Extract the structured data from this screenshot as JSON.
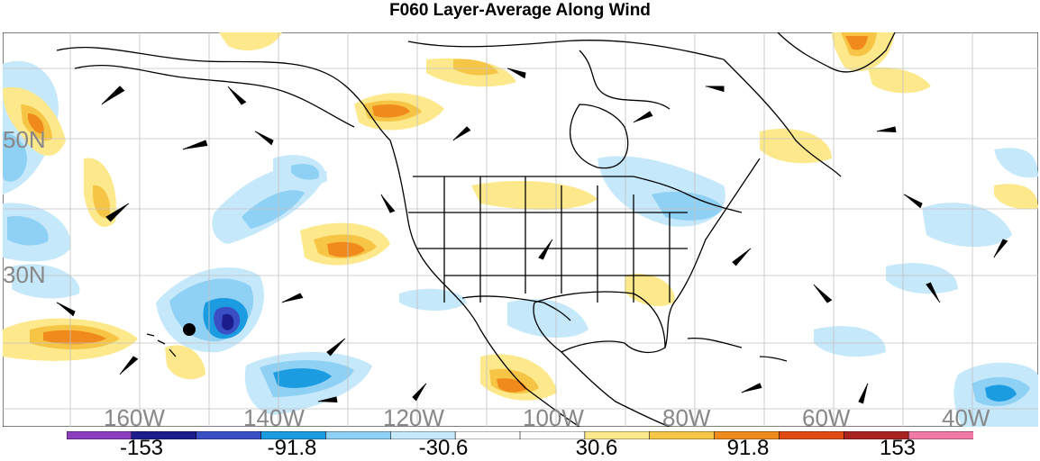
{
  "title": "F060 Layer-Average Along Wind",
  "latitude_labels": [
    "50N",
    "30N"
  ],
  "longitude_labels": [
    "160W",
    "140W",
    "120W",
    "100W",
    "80W",
    "60W",
    "40W"
  ],
  "colorbar": {
    "colors": [
      "#8b3fbf",
      "#1c1c8c",
      "#3a4fc4",
      "#1b9be0",
      "#8fd0f5",
      "#c6e8fb",
      "#ffffff",
      "#ffffff",
      "#fde98c",
      "#f7c545",
      "#f08a1c",
      "#e24a14",
      "#a82222",
      "#f07aa5"
    ],
    "labels": [
      "-153",
      "-91.8",
      "-30.6",
      "30.6",
      "91.8",
      "153"
    ]
  },
  "map": {
    "coast_color": "#000000",
    "grid_color": "#c0c0c0",
    "fill_colors": {
      "light_blue": "#c6e8fb",
      "mid_blue": "#8fd0f5",
      "blue": "#1b9be0",
      "dark_blue": "#3a4fc4",
      "navy": "#1c1c8c",
      "light_yellow": "#fde98c",
      "yellow": "#f7c545",
      "orange": "#f08a1c"
    },
    "marker_color": "#000000"
  }
}
